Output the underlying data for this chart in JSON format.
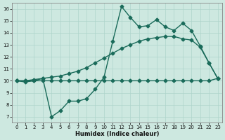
{
  "xlabel": "Humidex (Indice chaleur)",
  "xlim": [
    -0.5,
    23.5
  ],
  "ylim": [
    6.5,
    16.5
  ],
  "xticks": [
    0,
    1,
    2,
    3,
    4,
    5,
    6,
    7,
    8,
    9,
    10,
    11,
    12,
    13,
    14,
    15,
    16,
    17,
    18,
    19,
    20,
    21,
    22,
    23
  ],
  "yticks": [
    7,
    8,
    9,
    10,
    11,
    12,
    13,
    14,
    15,
    16
  ],
  "bg_color": "#cde8e0",
  "grid_color": "#aed4cb",
  "line_color": "#1a6b5a",
  "line1_x": [
    0,
    1,
    2,
    3,
    4,
    5,
    6,
    7,
    8,
    9,
    10,
    11,
    12,
    13,
    14,
    15,
    16,
    17,
    18,
    19,
    20,
    21,
    22,
    23
  ],
  "line1_y": [
    10,
    9.9,
    10.0,
    10.2,
    7.0,
    7.5,
    8.3,
    8.3,
    8.5,
    9.3,
    10.3,
    13.3,
    16.2,
    15.3,
    14.5,
    14.6,
    15.1,
    14.5,
    14.2,
    14.8,
    14.2,
    12.9,
    11.5,
    10.2
  ],
  "line2_x": [
    0,
    1,
    2,
    3,
    4,
    5,
    6,
    7,
    8,
    9,
    10,
    11,
    12,
    13,
    14,
    15,
    16,
    17,
    18,
    19,
    20,
    21,
    22,
    23
  ],
  "line2_y": [
    10,
    10,
    10.1,
    10.2,
    10.3,
    10.4,
    10.6,
    10.8,
    11.1,
    11.5,
    11.9,
    12.3,
    12.7,
    13.0,
    13.3,
    13.5,
    13.6,
    13.7,
    13.7,
    13.5,
    13.4,
    12.8,
    11.5,
    10.2
  ],
  "line3_x": [
    0,
    1,
    2,
    3,
    4,
    5,
    6,
    7,
    8,
    9,
    10,
    11,
    12,
    13,
    14,
    15,
    16,
    17,
    18,
    19,
    20,
    21,
    22,
    23
  ],
  "line3_y": [
    10,
    10,
    10,
    10,
    10,
    10,
    10,
    10,
    10,
    10,
    10,
    10,
    10,
    10,
    10,
    10,
    10,
    10,
    10,
    10,
    10,
    10,
    10,
    10.2
  ],
  "marker_size": 2.5,
  "line_width": 1.0
}
